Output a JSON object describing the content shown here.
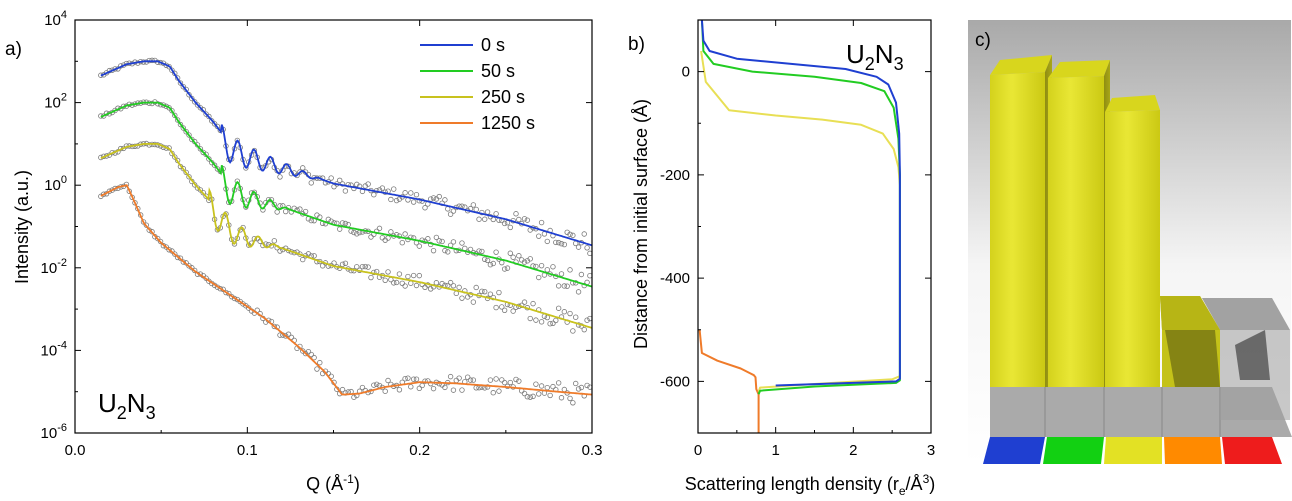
{
  "panels": {
    "a": "a)",
    "b": "b)",
    "c": "c)"
  },
  "chart_data": [
    {
      "panel": "a",
      "type": "line",
      "xlabel": "Q (Å⁻¹)",
      "ylabel": "Intensity (a.u.)",
      "xlim": [
        0.0,
        0.3
      ],
      "ylim": [
        1e-06,
        10000.0
      ],
      "yscale": "log",
      "x_ticks": [
        "0.0",
        "0.1",
        "0.2",
        "0.3"
      ],
      "y_ticks": [
        {
          "base": "10",
          "exp": "4"
        },
        {
          "base": "10",
          "exp": "2"
        },
        {
          "base": "10",
          "exp": "0"
        },
        {
          "base": "10",
          "exp": "-2"
        },
        {
          "base": "10",
          "exp": "-4"
        },
        {
          "base": "10",
          "exp": "-6"
        }
      ],
      "annotation": {
        "main": "U",
        "sub1": "2",
        "mid": "N",
        "sub2": "3"
      },
      "legend_position": "top-right",
      "marker_color": "#7a7a7a",
      "series": [
        {
          "name": "0 s",
          "color": "#1f3fd1",
          "offset_decades": 3,
          "points": [
            [
              0.015,
              0.45
            ],
            [
              0.03,
              0.85
            ],
            [
              0.04,
              1.0
            ],
            [
              0.048,
              1.0
            ],
            [
              0.055,
              0.75
            ],
            [
              0.06,
              0.35
            ],
            [
              0.07,
              0.1
            ],
            [
              0.08,
              0.035
            ],
            [
              0.09,
              0.01
            ],
            [
              0.1,
              0.006
            ],
            [
              0.12,
              0.003
            ],
            [
              0.15,
              0.0011
            ],
            [
              0.2,
              0.00045
            ],
            [
              0.25,
              0.00015
            ],
            [
              0.3,
              3.5e-05
            ]
          ],
          "fringes": {
            "start": 0.085,
            "end": 0.145,
            "period": 0.0095,
            "depth": 1.4
          }
        },
        {
          "name": "50 s",
          "color": "#22cc22",
          "offset_decades": 2,
          "points": [
            [
              0.015,
              0.45
            ],
            [
              0.03,
              0.85
            ],
            [
              0.04,
              1.0
            ],
            [
              0.048,
              1.0
            ],
            [
              0.055,
              0.75
            ],
            [
              0.06,
              0.35
            ],
            [
              0.07,
              0.1
            ],
            [
              0.08,
              0.035
            ],
            [
              0.09,
              0.01
            ],
            [
              0.1,
              0.006
            ],
            [
              0.12,
              0.003
            ],
            [
              0.15,
              0.0011
            ],
            [
              0.2,
              0.00045
            ],
            [
              0.25,
              0.00015
            ],
            [
              0.3,
              3.5e-05
            ]
          ],
          "fringes": {
            "start": 0.085,
            "end": 0.125,
            "period": 0.0095,
            "depth": 1.5
          }
        },
        {
          "name": "250 s",
          "color": "#c8c21e",
          "offset_decades": 1,
          "points": [
            [
              0.015,
              0.45
            ],
            [
              0.03,
              0.85
            ],
            [
              0.04,
              1.0
            ],
            [
              0.048,
              1.0
            ],
            [
              0.055,
              0.75
            ],
            [
              0.06,
              0.35
            ],
            [
              0.07,
              0.1
            ],
            [
              0.08,
              0.035
            ],
            [
              0.09,
              0.01
            ],
            [
              0.1,
              0.006
            ],
            [
              0.12,
              0.003
            ],
            [
              0.15,
              0.0011
            ],
            [
              0.2,
              0.00045
            ],
            [
              0.25,
              0.00015
            ],
            [
              0.3,
              3.5e-05
            ]
          ],
          "fringes": {
            "start": 0.078,
            "end": 0.12,
            "period": 0.0095,
            "depth": 1.6
          }
        },
        {
          "name": "1250 s",
          "color": "#ef7b2a",
          "offset_decades": 0,
          "points": [
            [
              0.015,
              0.55
            ],
            [
              0.025,
              0.9
            ],
            [
              0.03,
              1.0
            ],
            [
              0.033,
              0.55
            ],
            [
              0.04,
              0.12
            ],
            [
              0.05,
              0.04
            ],
            [
              0.07,
              0.008
            ],
            [
              0.09,
              0.0022
            ],
            [
              0.11,
              0.0006
            ],
            [
              0.13,
              0.00012
            ],
            [
              0.145,
              3e-05
            ],
            [
              0.155,
              8.5e-06
            ],
            [
              0.165,
              9e-06
            ],
            [
              0.18,
              1.3e-05
            ],
            [
              0.2,
              1.7e-05
            ],
            [
              0.22,
              1.6e-05
            ],
            [
              0.25,
              1.3e-05
            ],
            [
              0.28,
              1e-05
            ],
            [
              0.3,
              8.5e-06
            ]
          ],
          "fringes": null
        }
      ]
    },
    {
      "panel": "b",
      "type": "line",
      "xlabel": "Scattering length density (rₑ/Å³)",
      "ylabel": "Distance from initial surface (Å)",
      "xlim": [
        0,
        3
      ],
      "ylim": [
        -700,
        100
      ],
      "x_ticks": [
        "0",
        "1",
        "2",
        "3"
      ],
      "y_ticks": [
        "0",
        "-200",
        "-400",
        "-600"
      ],
      "annotation": {
        "main": "U",
        "sub1": "2",
        "mid": "N",
        "sub2": "3"
      },
      "series": [
        {
          "name": "0 s",
          "color": "#1f3fd1",
          "points": [
            [
              0.05,
              100
            ],
            [
              0.07,
              60
            ],
            [
              0.15,
              40
            ],
            [
              0.5,
              25
            ],
            [
              1.2,
              15
            ],
            [
              1.9,
              5
            ],
            [
              2.3,
              -10
            ],
            [
              2.45,
              -25
            ],
            [
              2.55,
              -60
            ],
            [
              2.59,
              -120
            ],
            [
              2.6,
              -200
            ],
            [
              2.6,
              -595
            ],
            [
              2.55,
              -600
            ],
            [
              1.0,
              -608
            ]
          ]
        },
        {
          "name": "50 s",
          "color": "#22cc22",
          "points": [
            [
              0.05,
              100
            ],
            [
              0.07,
              40
            ],
            [
              0.2,
              15
            ],
            [
              0.7,
              0
            ],
            [
              1.5,
              -10
            ],
            [
              2.1,
              -22
            ],
            [
              2.4,
              -38
            ],
            [
              2.52,
              -70
            ],
            [
              2.58,
              -130
            ],
            [
              2.6,
              -200
            ],
            [
              2.6,
              -598
            ],
            [
              2.55,
              -603
            ],
            [
              1.5,
              -610
            ],
            [
              0.8,
              -618
            ],
            [
              0.78,
              -625
            ]
          ]
        },
        {
          "name": "250 s",
          "color": "#e8df55",
          "points": [
            [
              0.04,
              40
            ],
            [
              0.1,
              -20
            ],
            [
              0.4,
              -75
            ],
            [
              1.0,
              -85
            ],
            [
              1.6,
              -93
            ],
            [
              2.1,
              -103
            ],
            [
              2.38,
              -120
            ],
            [
              2.52,
              -150
            ],
            [
              2.58,
              -185
            ],
            [
              2.6,
              -220
            ],
            [
              2.6,
              -590
            ],
            [
              2.5,
              -596
            ],
            [
              1.5,
              -605
            ],
            [
              0.8,
              -612
            ],
            [
              0.78,
              -620
            ]
          ]
        },
        {
          "name": "1250 s",
          "color": "#ef7b2a",
          "points": [
            [
              0.02,
              -500
            ],
            [
              0.05,
              -545
            ],
            [
              0.25,
              -560
            ],
            [
              0.55,
              -575
            ],
            [
              0.68,
              -585
            ],
            [
              0.72,
              -588
            ],
            [
              0.74,
              -592
            ],
            [
              0.75,
              -615
            ],
            [
              0.78,
              -625
            ],
            [
              0.78,
              -700
            ]
          ]
        }
      ]
    }
  ],
  "panel_c": {
    "tower_color": "#e3e124",
    "base_color": "#b3b3b3",
    "color_swatches": [
      "#1f3fd1",
      "#12d012",
      "#e3e124",
      "#ff8a00",
      "#ee1c1c"
    ],
    "tower_levels": [
      0.92,
      0.92,
      0.75,
      0.25,
      0.0
    ]
  }
}
